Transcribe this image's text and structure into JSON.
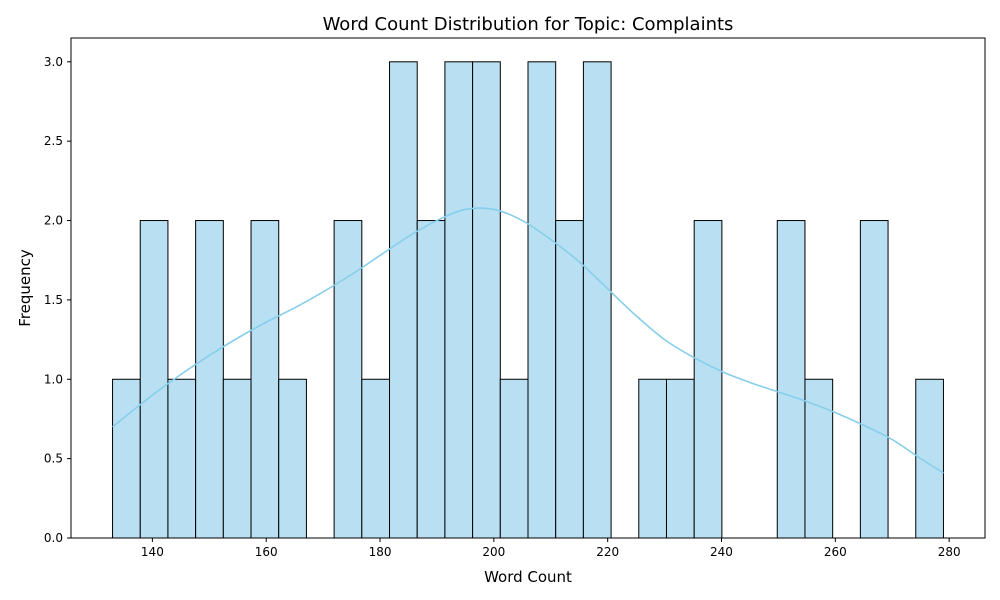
{
  "chart_data": {
    "type": "bar",
    "title": "Word Count Distribution for Topic: Complaints",
    "xlabel": "Word Count",
    "ylabel": "Frequency",
    "bin_start": 133,
    "bin_end": 279,
    "bins": [
      {
        "start": 133.0,
        "end": 138.0,
        "count": 1
      },
      {
        "start": 138.0,
        "end": 143.0,
        "count": 2
      },
      {
        "start": 143.0,
        "end": 148.0,
        "count": 1
      },
      {
        "start": 148.0,
        "end": 152.0,
        "count": 2
      },
      {
        "start": 152.0,
        "end": 157.0,
        "count": 1
      },
      {
        "start": 157.0,
        "end": 162.0,
        "count": 2
      },
      {
        "start": 162.0,
        "end": 167.0,
        "count": 1
      },
      {
        "start": 167.0,
        "end": 172.0,
        "count": 0
      },
      {
        "start": 172.0,
        "end": 177.0,
        "count": 2
      },
      {
        "start": 177.0,
        "end": 182.0,
        "count": 1
      },
      {
        "start": 182.0,
        "end": 186.0,
        "count": 3
      },
      {
        "start": 186.0,
        "end": 191.0,
        "count": 2
      },
      {
        "start": 191.0,
        "end": 196.0,
        "count": 3
      },
      {
        "start": 196.0,
        "end": 201.0,
        "count": 3
      },
      {
        "start": 201.0,
        "end": 206.0,
        "count": 1
      },
      {
        "start": 206.0,
        "end": 211.0,
        "count": 3
      },
      {
        "start": 211.0,
        "end": 216.0,
        "count": 2
      },
      {
        "start": 216.0,
        "end": 221.0,
        "count": 3
      },
      {
        "start": 221.0,
        "end": 225.0,
        "count": 0
      },
      {
        "start": 225.0,
        "end": 230.0,
        "count": 1
      },
      {
        "start": 230.0,
        "end": 235.0,
        "count": 1
      },
      {
        "start": 235.0,
        "end": 240.0,
        "count": 2
      },
      {
        "start": 240.0,
        "end": 245.0,
        "count": 0
      },
      {
        "start": 245.0,
        "end": 250.0,
        "count": 0
      },
      {
        "start": 250.0,
        "end": 255.0,
        "count": 2
      },
      {
        "start": 255.0,
        "end": 260.0,
        "count": 1
      },
      {
        "start": 260.0,
        "end": 264.0,
        "count": 0
      },
      {
        "start": 264.0,
        "end": 269.0,
        "count": 2
      },
      {
        "start": 269.0,
        "end": 274.0,
        "count": 0
      },
      {
        "start": 274.0,
        "end": 279.0,
        "count": 1
      }
    ],
    "kde": {
      "x": [
        133,
        140,
        145,
        150,
        155,
        160,
        165,
        170,
        175,
        180,
        185,
        190,
        195,
        200,
        205,
        210,
        215,
        220,
        225,
        230,
        235,
        240,
        245,
        250,
        255,
        260,
        265,
        270,
        275,
        279
      ],
      "y": [
        0.7,
        0.9,
        1.03,
        1.15,
        1.26,
        1.36,
        1.45,
        1.55,
        1.66,
        1.78,
        1.9,
        2.0,
        2.07,
        2.07,
        2.0,
        1.88,
        1.74,
        1.57,
        1.4,
        1.25,
        1.14,
        1.05,
        0.98,
        0.92,
        0.86,
        0.79,
        0.71,
        0.62,
        0.5,
        0.41
      ]
    },
    "xlim": [
      125.7,
      286.3
    ],
    "ylim": [
      0,
      3.15
    ],
    "xticks": [
      140,
      160,
      180,
      200,
      220,
      240,
      260,
      280
    ],
    "yticks": [
      0.0,
      0.5,
      1.0,
      1.5,
      2.0,
      2.5,
      3.0
    ],
    "xtick_labels": [
      "140",
      "160",
      "180",
      "200",
      "220",
      "240",
      "260",
      "280"
    ],
    "ytick_labels": [
      "0.0",
      "0.5",
      "1.0",
      "1.5",
      "2.0",
      "2.5",
      "3.0"
    ],
    "bar_color": "#b8e0f2",
    "bar_edge_color": "#000000",
    "kde_color": "#87ceeb",
    "grid": false,
    "legend": "none"
  }
}
